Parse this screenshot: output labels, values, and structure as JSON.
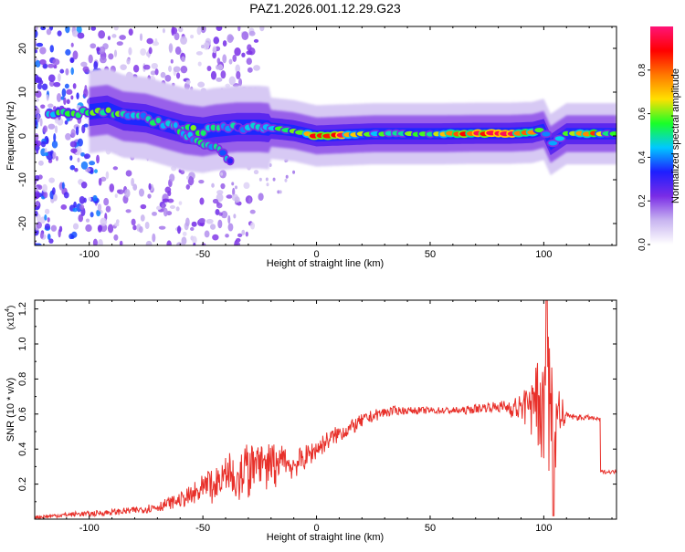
{
  "title": "PAZ1.2026.001.12.29.G23",
  "chart_data": [
    {
      "type": "heatmap",
      "title": "PAZ1.2026.001.12.29.G23",
      "xlabel": "Height of straight line (km)",
      "ylabel": "Frequency (Hz)",
      "xlim": [
        -124,
        132
      ],
      "ylim": [
        -25,
        25
      ],
      "xticks": [
        -100,
        -50,
        0,
        50,
        100
      ],
      "xtick_labels": [
        "-100",
        "-50",
        "0",
        "50",
        "100"
      ],
      "yticks": [
        -20,
        -10,
        0,
        10,
        20
      ],
      "ytick_labels": [
        "-20",
        "-10",
        "0",
        "10",
        "20"
      ],
      "ridge": {
        "description": "dominant frequency ridge (normalized amplitude)",
        "points": [
          {
            "x": -118,
            "f": 5,
            "a": 0.45
          },
          {
            "x": -110,
            "f": 5,
            "a": 0.55
          },
          {
            "x": -100,
            "f": 5.5,
            "a": 0.5
          },
          {
            "x": -92,
            "f": 6,
            "a": 0.6
          },
          {
            "x": -85,
            "f": 4.5,
            "a": 0.5
          },
          {
            "x": -75,
            "f": 4,
            "a": 0.45
          },
          {
            "x": -65,
            "f": 2.5,
            "a": 0.5
          },
          {
            "x": -58,
            "f": 1.5,
            "a": 0.55
          },
          {
            "x": -50,
            "f": 1,
            "a": 0.5
          },
          {
            "x": -45,
            "f": 1.5,
            "a": 0.45
          },
          {
            "x": -35,
            "f": 2,
            "a": 0.4
          },
          {
            "x": -25,
            "f": 2,
            "a": 0.45
          },
          {
            "x": -15,
            "f": 1.5,
            "a": 0.5
          },
          {
            "x": -10,
            "f": 1.2,
            "a": 0.55
          },
          {
            "x": 0,
            "f": 0,
            "a": 0.85
          },
          {
            "x": 10,
            "f": 0.2,
            "a": 0.9
          },
          {
            "x": 25,
            "f": 0.5,
            "a": 0.5
          },
          {
            "x": 40,
            "f": 0.5,
            "a": 0.55
          },
          {
            "x": 55,
            "f": 0.5,
            "a": 0.6
          },
          {
            "x": 70,
            "f": 0.6,
            "a": 0.9
          },
          {
            "x": 85,
            "f": 0.6,
            "a": 0.95
          },
          {
            "x": 95,
            "f": 0.8,
            "a": 0.7
          },
          {
            "x": 100,
            "f": 1.5,
            "a": 0.55
          },
          {
            "x": 103,
            "f": -2,
            "a": 0.35
          },
          {
            "x": 110,
            "f": 0.5,
            "a": 0.6
          },
          {
            "x": 120,
            "f": 0.5,
            "a": 0.85
          },
          {
            "x": 130,
            "f": 0.5,
            "a": 0.5
          }
        ]
      },
      "branch": {
        "description": "secondary descending branch",
        "points": [
          {
            "x": -62,
            "f": 2,
            "a": 0.5
          },
          {
            "x": -55,
            "f": -0.5,
            "a": 0.45
          },
          {
            "x": -48,
            "f": -2,
            "a": 0.45
          },
          {
            "x": -42,
            "f": -3.5,
            "a": 0.4
          },
          {
            "x": -37,
            "f": -6.5,
            "a": 0.35
          }
        ]
      },
      "colorbar": {
        "label": "Normalized spectral amplitude",
        "range": [
          0,
          1
        ],
        "ticks": [
          0.0,
          0.2,
          0.4,
          0.6,
          0.8
        ],
        "tick_labels": [
          "0.0",
          "0.2",
          "0.4",
          "0.6",
          "0.8"
        ],
        "colors": [
          "#ffffff",
          "#c8b4f0",
          "#7a2ce6",
          "#1e1eff",
          "#00c8ff",
          "#19ff28",
          "#ffe000",
          "#ff7800",
          "#ff0000",
          "#ff1478"
        ]
      }
    },
    {
      "type": "line",
      "xlabel": "Height of straight line (km)",
      "ylabel": "SNR (10 * v/v)",
      "y_multiplier_label": "(x10",
      "y_multiplier_exp": "4",
      "y_multiplier_close": ")",
      "xlim": [
        -124,
        132
      ],
      "ylim": [
        0,
        1.25
      ],
      "xticks": [
        -100,
        -50,
        0,
        50,
        100
      ],
      "xtick_labels": [
        "-100",
        "-50",
        "0",
        "50",
        "100"
      ],
      "yticks": [
        0.2,
        0.4,
        0.6,
        0.8,
        1.0,
        1.2
      ],
      "ytick_labels": [
        "0.2",
        "0.4",
        "0.6",
        "0.8",
        "1.0",
        "1.2"
      ],
      "line_color": "#e8302a",
      "series": [
        {
          "name": "SNR",
          "x": [
            -124,
            -115,
            -105,
            -100,
            -90,
            -80,
            -70,
            -65,
            -60,
            -55,
            -50,
            -45,
            -40,
            -35,
            -30,
            -25,
            -20,
            -15,
            -10,
            -5,
            0,
            5,
            10,
            15,
            20,
            25,
            30,
            35,
            40,
            45,
            50,
            55,
            60,
            65,
            70,
            75,
            80,
            85,
            90,
            95,
            100,
            103,
            105,
            110,
            115,
            120,
            124,
            125,
            132
          ],
          "y": [
            0.01,
            0.02,
            0.03,
            0.03,
            0.04,
            0.05,
            0.07,
            0.09,
            0.11,
            0.13,
            0.16,
            0.19,
            0.22,
            0.25,
            0.27,
            0.29,
            0.28,
            0.3,
            0.31,
            0.35,
            0.4,
            0.45,
            0.49,
            0.52,
            0.56,
            0.59,
            0.61,
            0.62,
            0.62,
            0.62,
            0.62,
            0.62,
            0.62,
            0.62,
            0.63,
            0.64,
            0.64,
            0.64,
            0.63,
            0.64,
            0.65,
            0.62,
            0.6,
            0.59,
            0.58,
            0.58,
            0.57,
            0.27,
            0.27
          ]
        }
      ],
      "fluctuation": {
        "description": "noise amplitude envelope",
        "x": [
          -124,
          -80,
          -60,
          -45,
          -35,
          -20,
          -10,
          0,
          20,
          40,
          60,
          80,
          90,
          95,
          98,
          101,
          103,
          106,
          110,
          124,
          132
        ],
        "amp": [
          0.01,
          0.02,
          0.04,
          0.12,
          0.16,
          0.15,
          0.08,
          0.06,
          0.04,
          0.02,
          0.02,
          0.03,
          0.08,
          0.18,
          0.3,
          0.5,
          0.5,
          0.25,
          0.02,
          0.01,
          0.01
        ]
      }
    }
  ]
}
